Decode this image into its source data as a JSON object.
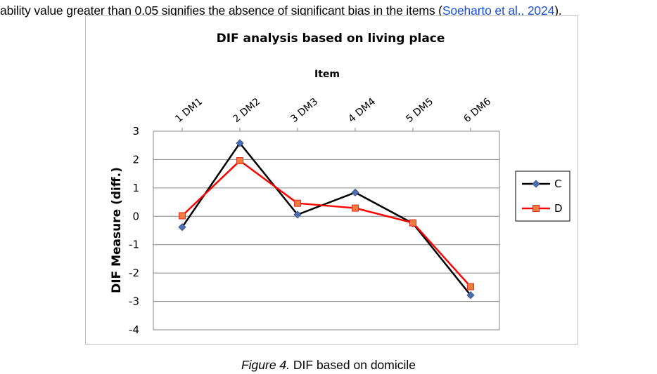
{
  "intro": {
    "text_before": "ability value greater than 0.05 signifies the absence of significant bias in the items (",
    "citation": "Soeharto et al., 2024",
    "text_after": ")."
  },
  "caption": {
    "label": "Figure 4.",
    "text": " DIF based on domicile"
  },
  "colors": {
    "series_c": "#000000",
    "series_c_marker": "#4f6fb0",
    "series_d": "#ff0000",
    "series_d_marker": "#f07b3f",
    "citation": "#1a4fd6"
  },
  "chart_data": {
    "type": "line",
    "title": "DIF analysis based on living place",
    "xlabel": "Item",
    "ylabel": "DIF Measure (diff.)",
    "categories": [
      "1 DM1",
      "2 DM2",
      "3 DM3",
      "4 DM4",
      "5 DM5",
      "6 DM6"
    ],
    "ylim": [
      -4,
      3
    ],
    "yticks": [
      "3",
      "2",
      "1",
      "0",
      "-1",
      "-2",
      "-3",
      "-4"
    ],
    "series": [
      {
        "name": "C",
        "values": [
          -0.38,
          2.58,
          0.06,
          0.84,
          -0.25,
          -2.78
        ],
        "marker": "diamond"
      },
      {
        "name": "D",
        "values": [
          0.02,
          1.96,
          0.46,
          0.29,
          -0.23,
          -2.48
        ],
        "marker": "square"
      }
    ],
    "legend": "right",
    "grid": true
  }
}
